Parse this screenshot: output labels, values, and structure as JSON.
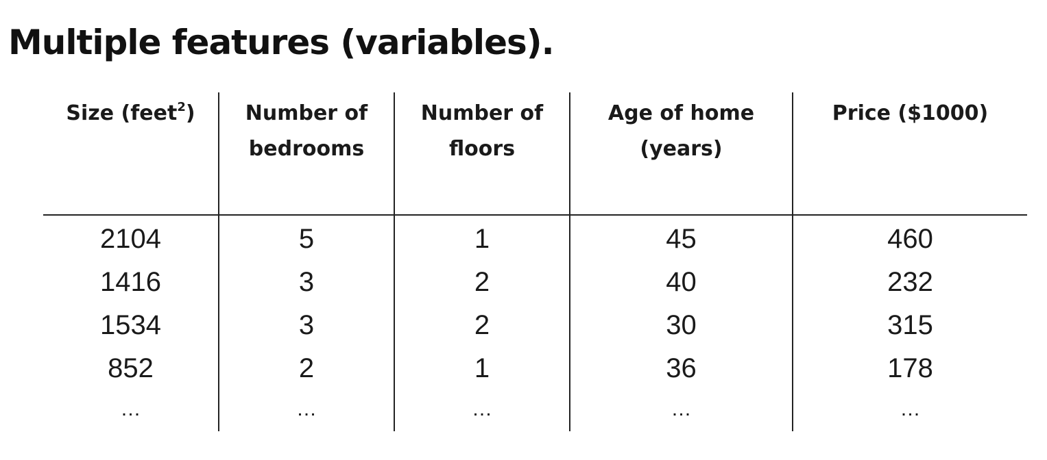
{
  "title": "Multiple features (variables).",
  "table": {
    "columns": [
      {
        "header_lines": [
          "Size (feet",
          "2",
          ")"
        ],
        "values": [
          "2104",
          "1416",
          "1534",
          "852",
          "…"
        ]
      },
      {
        "header_lines": [
          "Number of",
          "bedrooms"
        ],
        "values": [
          "5",
          "3",
          "3",
          "2",
          "…"
        ]
      },
      {
        "header_lines": [
          "Number of",
          "floors"
        ],
        "values": [
          "1",
          "2",
          "2",
          "1",
          "…"
        ]
      },
      {
        "header_lines": [
          "Age of home",
          "(years)"
        ],
        "values": [
          "45",
          "40",
          "30",
          "36",
          "…"
        ]
      },
      {
        "header_lines": [
          "Price ($1000)"
        ],
        "values": [
          "460",
          "232",
          "315",
          "178",
          "…"
        ]
      }
    ]
  }
}
